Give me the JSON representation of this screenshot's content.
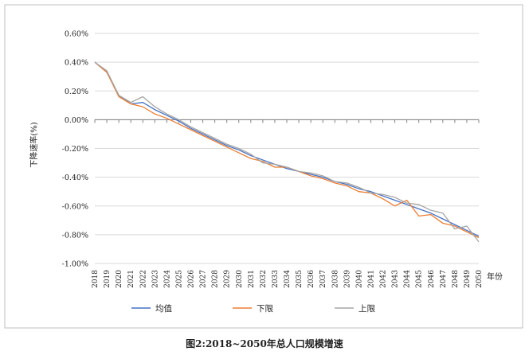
{
  "caption": "图2:2018~2050年总人口规模增速",
  "chart_data": {
    "type": "line",
    "title": "",
    "ylabel": "下降速率(%)",
    "xlabel": "年份",
    "ylim": [
      -1.0,
      0.6
    ],
    "yticks": [
      0.6,
      0.4,
      0.2,
      0.0,
      -0.2,
      -0.4,
      -0.6,
      -0.8,
      -1.0
    ],
    "ytick_labels": [
      "0.60%",
      "0.40%",
      "0.20%",
      "0.00%",
      "-0.20%",
      "-0.40%",
      "-0.60%",
      "-0.80%",
      "-1.00%"
    ],
    "grid": true,
    "legend_position": "bottom",
    "x": [
      "2018",
      "2019",
      "2020",
      "2021",
      "2022",
      "2023",
      "2024",
      "2025",
      "2026",
      "2027",
      "2028",
      "2029",
      "2030",
      "2031",
      "2032",
      "2033",
      "2034",
      "2035",
      "2036",
      "2037",
      "2038",
      "2039",
      "2040",
      "2041",
      "2042",
      "2043",
      "2044",
      "2045",
      "2046",
      "2047",
      "2048",
      "2049",
      "2050"
    ],
    "series": [
      {
        "name": "均值",
        "color": "#4472c4",
        "values": [
          0.4,
          0.33,
          0.17,
          0.11,
          0.12,
          0.07,
          0.03,
          -0.01,
          -0.06,
          -0.1,
          -0.14,
          -0.18,
          -0.21,
          -0.25,
          -0.28,
          -0.31,
          -0.34,
          -0.36,
          -0.38,
          -0.4,
          -0.43,
          -0.45,
          -0.48,
          -0.5,
          -0.53,
          -0.56,
          -0.59,
          -0.62,
          -0.65,
          -0.69,
          -0.73,
          -0.77,
          -0.81
        ]
      },
      {
        "name": "下限",
        "color": "#ed7d31",
        "values": [
          0.4,
          0.33,
          0.16,
          0.11,
          0.09,
          0.04,
          0.01,
          -0.03,
          -0.07,
          -0.11,
          -0.15,
          -0.19,
          -0.23,
          -0.27,
          -0.29,
          -0.33,
          -0.33,
          -0.36,
          -0.39,
          -0.41,
          -0.44,
          -0.46,
          -0.5,
          -0.51,
          -0.55,
          -0.6,
          -0.56,
          -0.67,
          -0.66,
          -0.72,
          -0.74,
          -0.78,
          -0.82
        ]
      },
      {
        "name": "上限",
        "color": "#a5a5a5",
        "values": [
          0.4,
          0.34,
          0.17,
          0.12,
          0.16,
          0.09,
          0.04,
          0.0,
          -0.05,
          -0.09,
          -0.13,
          -0.17,
          -0.2,
          -0.24,
          -0.3,
          -0.31,
          -0.33,
          -0.36,
          -0.37,
          -0.39,
          -0.43,
          -0.44,
          -0.47,
          -0.51,
          -0.52,
          -0.54,
          -0.58,
          -0.59,
          -0.63,
          -0.65,
          -0.76,
          -0.74,
          -0.85
        ]
      }
    ]
  }
}
